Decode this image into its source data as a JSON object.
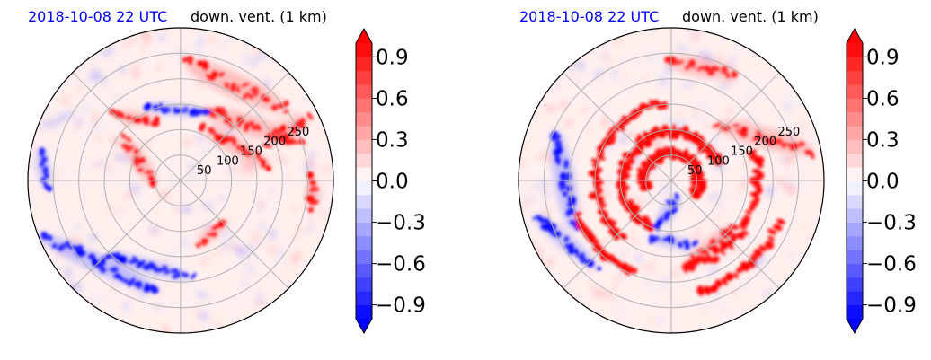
{
  "chart_data": [
    {
      "type": "heatmap",
      "projection": "polar",
      "title_left": "2018-10-08 22 UTC",
      "title_right": "down. vent. (1 km)",
      "title_left_color": "#0000ff",
      "radial_ticks": [
        50,
        100,
        150,
        200,
        250
      ],
      "radial_max": 300,
      "angular_grid_step_deg": 45,
      "colormap": "bwr",
      "colorbar": {
        "ticks": [
          "0.9",
          "0.6",
          "0.3",
          "0.0",
          "−0.3",
          "−0.6",
          "−0.9"
        ],
        "tick_values": [
          0.9,
          0.6,
          0.3,
          0.0,
          -0.3,
          -0.6,
          -0.9
        ],
        "range": [
          -1.0,
          1.0
        ],
        "extend": "both"
      },
      "features": {
        "red": [
          {
            "r": 215,
            "theta": 60,
            "w": 220,
            "h": 26,
            "rot": 25
          },
          {
            "r": 175,
            "theta": 38,
            "w": 200,
            "h": 22,
            "rot": 18
          },
          {
            "r": 130,
            "theta": 30,
            "w": 150,
            "h": 18,
            "rot": 30
          },
          {
            "r": 235,
            "theta": 25,
            "w": 90,
            "h": 20,
            "rot": -35
          },
          {
            "r": 90,
            "theta": 155,
            "w": 110,
            "h": 18,
            "rot": 55
          },
          {
            "r": 150,
            "theta": 125,
            "w": 90,
            "h": 14,
            "rot": 10
          },
          {
            "r": 120,
            "theta": -60,
            "w": 70,
            "h": 14,
            "rot": -40
          },
          {
            "r": 260,
            "theta": -5,
            "w": 60,
            "h": 14,
            "rot": 90
          }
        ],
        "blue": [
          {
            "r": 230,
            "theta": -135,
            "w": 260,
            "h": 20,
            "rot": 25
          },
          {
            "r": 180,
            "theta": -110,
            "w": 170,
            "h": 14,
            "rot": 15
          },
          {
            "r": 270,
            "theta": 175,
            "w": 80,
            "h": 14,
            "rot": 80
          },
          {
            "r": 140,
            "theta": 95,
            "w": 120,
            "h": 12,
            "rot": 5
          }
        ]
      }
    },
    {
      "type": "heatmap",
      "projection": "polar",
      "title_left": "2018-10-08 22 UTC",
      "title_right": "down. vent. (1 km)",
      "title_left_color": "#0000ff",
      "radial_ticks": [
        50,
        100,
        150,
        200,
        250
      ],
      "radial_max": 300,
      "angular_grid_step_deg": 45,
      "colormap": "bwr",
      "colorbar": {
        "ticks": [
          "0.9",
          "0.6",
          "0.3",
          "0.0",
          "−0.3",
          "−0.6",
          "−0.9"
        ],
        "tick_values": [
          0.9,
          0.6,
          0.3,
          0.0,
          -0.3,
          -0.6,
          -0.9
        ],
        "range": [
          -1.0,
          1.0
        ],
        "extend": "both"
      },
      "features": {
        "red_arcs": [
          {
            "r": 55,
            "start": -30,
            "end": 200,
            "w": 26
          },
          {
            "r": 95,
            "start": 20,
            "end": 250,
            "w": 28
          },
          {
            "r": 150,
            "start": 95,
            "end": 230,
            "w": 22
          },
          {
            "r": 170,
            "start": -80,
            "end": 20,
            "w": 30
          },
          {
            "r": 225,
            "start": -75,
            "end": -20,
            "w": 20
          },
          {
            "r": 195,
            "start": 200,
            "end": 250,
            "w": 14
          }
        ],
        "red": [
          {
            "r": 200,
            "theta": 25,
            "w": 200,
            "h": 22,
            "rot": 15
          },
          {
            "r": 230,
            "theta": 75,
            "w": 140,
            "h": 20,
            "rot": 10
          },
          {
            "r": 150,
            "theta": -60,
            "w": 120,
            "h": 16,
            "rot": -40
          }
        ],
        "blue": [
          {
            "r": 210,
            "theta": 180,
            "w": 200,
            "h": 22,
            "rot": 80
          },
          {
            "r": 240,
            "theta": -150,
            "w": 160,
            "h": 16,
            "rot": 40
          },
          {
            "r": 60,
            "theta": -95,
            "w": 70,
            "h": 16,
            "rot": -55
          },
          {
            "r": 120,
            "theta": -90,
            "w": 90,
            "h": 12,
            "rot": 10
          }
        ]
      }
    }
  ]
}
